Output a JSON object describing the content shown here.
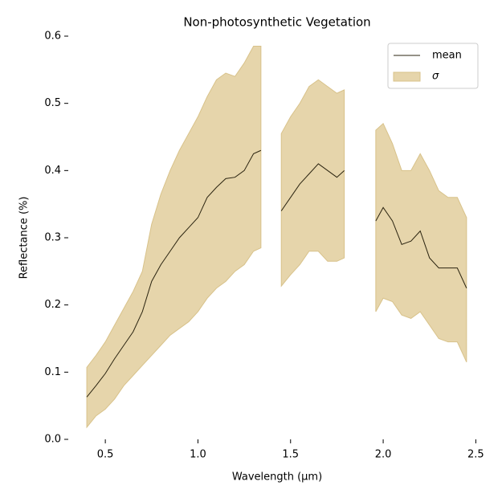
{
  "chart_data": {
    "type": "line",
    "title": "Non-photosynthetic Vegetation",
    "x_label": "Wavelength (μm)",
    "y_label": "Reflectance (%)",
    "x": [
      0.4,
      0.45,
      0.5,
      0.55,
      0.6,
      0.65,
      0.7,
      0.75,
      0.8,
      0.85,
      0.9,
      0.95,
      1.0,
      1.05,
      1.1,
      1.15,
      1.2,
      1.25,
      1.3,
      1.34,
      1.4,
      1.45,
      1.5,
      1.55,
      1.6,
      1.65,
      1.7,
      1.75,
      1.79,
      1.87,
      1.96,
      2.0,
      2.05,
      2.1,
      2.15,
      2.2,
      2.25,
      2.3,
      2.35,
      2.4,
      2.45
    ],
    "series": [
      {
        "name": "mean",
        "color": "#2b2410",
        "values": [
          0.063,
          0.08,
          0.098,
          0.12,
          0.14,
          0.16,
          0.19,
          0.235,
          0.26,
          0.28,
          0.3,
          0.315,
          0.33,
          0.36,
          0.375,
          0.388,
          0.39,
          0.4,
          0.425,
          0.43,
          null,
          0.34,
          0.36,
          0.38,
          0.395,
          0.41,
          0.4,
          0.39,
          0.4,
          null,
          0.325,
          0.345,
          0.325,
          0.29,
          0.295,
          0.31,
          0.27,
          0.255,
          0.255,
          0.255,
          0.225
        ]
      },
      {
        "name": "σ",
        "color": "#e6d5ab",
        "edge_color": "#d8c28a",
        "upper": [
          0.107,
          0.125,
          0.145,
          0.17,
          0.195,
          0.22,
          0.25,
          0.32,
          0.365,
          0.4,
          0.43,
          0.455,
          0.48,
          0.51,
          0.535,
          0.545,
          0.54,
          0.56,
          0.585,
          0.585,
          null,
          0.455,
          0.48,
          0.5,
          0.525,
          0.535,
          0.525,
          0.515,
          0.52,
          null,
          0.46,
          0.47,
          0.44,
          0.4,
          0.4,
          0.425,
          0.4,
          0.37,
          0.36,
          0.36,
          0.33
        ],
        "lower": [
          0.018,
          0.035,
          0.045,
          0.06,
          0.08,
          0.095,
          0.11,
          0.125,
          0.14,
          0.155,
          0.165,
          0.175,
          0.19,
          0.21,
          0.225,
          0.235,
          0.25,
          0.26,
          0.28,
          0.285,
          null,
          0.228,
          0.245,
          0.26,
          0.28,
          0.28,
          0.265,
          0.265,
          0.27,
          null,
          0.19,
          0.21,
          0.205,
          0.185,
          0.18,
          0.19,
          0.17,
          0.15,
          0.145,
          0.145,
          0.115
        ]
      }
    ],
    "xlim": [
      0.3,
      2.52
    ],
    "ylim": [
      0,
      0.6
    ],
    "xticks": [
      0.5,
      {
        "value": 1,
        "label": "1.0"
      },
      1.5,
      {
        "value": 2,
        "label": "2.0"
      },
      2.5
    ],
    "yticks": [
      {
        "value": 0,
        "label": "0.0"
      },
      0.1,
      0.2,
      0.3,
      0.4,
      0.5,
      0.6
    ],
    "legend": "upper right"
  }
}
